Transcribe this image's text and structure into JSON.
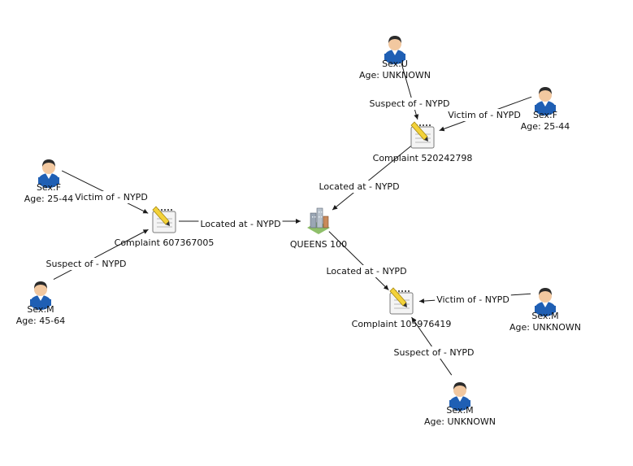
{
  "graph": {
    "nodes": [
      {
        "id": "complaint_520242798",
        "type": "complaint",
        "icon": "notepad-pencil-icon",
        "lines": [
          "Complaint 520242798"
        ]
      },
      {
        "id": "complaint_607367005",
        "type": "complaint",
        "icon": "notepad-pencil-icon",
        "lines": [
          "Complaint 607367005"
        ]
      },
      {
        "id": "complaint_105976419",
        "type": "complaint",
        "icon": "notepad-pencil-icon",
        "lines": [
          "Complaint 105976419"
        ]
      },
      {
        "id": "queens_100",
        "type": "location",
        "icon": "city-buildings-icon",
        "lines": [
          "QUEENS 100"
        ]
      },
      {
        "id": "person_u_unknown",
        "type": "person",
        "icon": "person-icon",
        "lines": [
          "Sex:U",
          "Age: UNKNOWN"
        ]
      },
      {
        "id": "person_f_2544_top",
        "type": "person",
        "icon": "person-icon",
        "lines": [
          "Sex:F",
          "Age: 25-44"
        ]
      },
      {
        "id": "person_f_2544_left",
        "type": "person",
        "icon": "person-icon",
        "lines": [
          "Sex:F",
          "Age: 25-44"
        ]
      },
      {
        "id": "person_m_4564",
        "type": "person",
        "icon": "person-icon",
        "lines": [
          "Sex:M",
          "Age: 45-64"
        ]
      },
      {
        "id": "person_m_unknown_right",
        "type": "person",
        "icon": "person-icon",
        "lines": [
          "Sex:M",
          "Age: UNKNOWN"
        ]
      },
      {
        "id": "person_m_unknown_bottom",
        "type": "person",
        "icon": "person-icon",
        "lines": [
          "Sex:M",
          "Age: UNKNOWN"
        ]
      }
    ],
    "edges": [
      {
        "id": "e1",
        "from": "person_u_unknown",
        "to": "complaint_520242798",
        "label": "Suspect of - NYPD"
      },
      {
        "id": "e2",
        "from": "person_f_2544_top",
        "to": "complaint_520242798",
        "label": "Victim of - NYPD"
      },
      {
        "id": "e3",
        "from": "complaint_520242798",
        "to": "queens_100",
        "label": "Located at - NYPD"
      },
      {
        "id": "e4",
        "from": "person_f_2544_left",
        "to": "complaint_607367005",
        "label": "Victim of - NYPD"
      },
      {
        "id": "e5",
        "from": "person_m_4564",
        "to": "complaint_607367005",
        "label": "Suspect of - NYPD"
      },
      {
        "id": "e6",
        "from": "complaint_607367005",
        "to": "queens_100",
        "label": "Located at - NYPD"
      },
      {
        "id": "e7",
        "from": "queens_100",
        "to": "complaint_105976419",
        "label": "Located at - NYPD"
      },
      {
        "id": "e8",
        "from": "person_m_unknown_right",
        "to": "complaint_105976419",
        "label": "Victim of - NYPD"
      },
      {
        "id": "e9",
        "from": "person_m_unknown_bottom",
        "to": "complaint_105976419",
        "label": "Suspect of - NYPD"
      }
    ],
    "colors": {
      "person_shirt": "#1f5fb4",
      "person_skin": "#f2c8a0",
      "person_hair": "#2b2b2b",
      "notepad_paper": "#f4f4f4",
      "pencil": "#f3d23a",
      "building": "#9aa6b4",
      "edge": "#1a1a1a"
    }
  }
}
